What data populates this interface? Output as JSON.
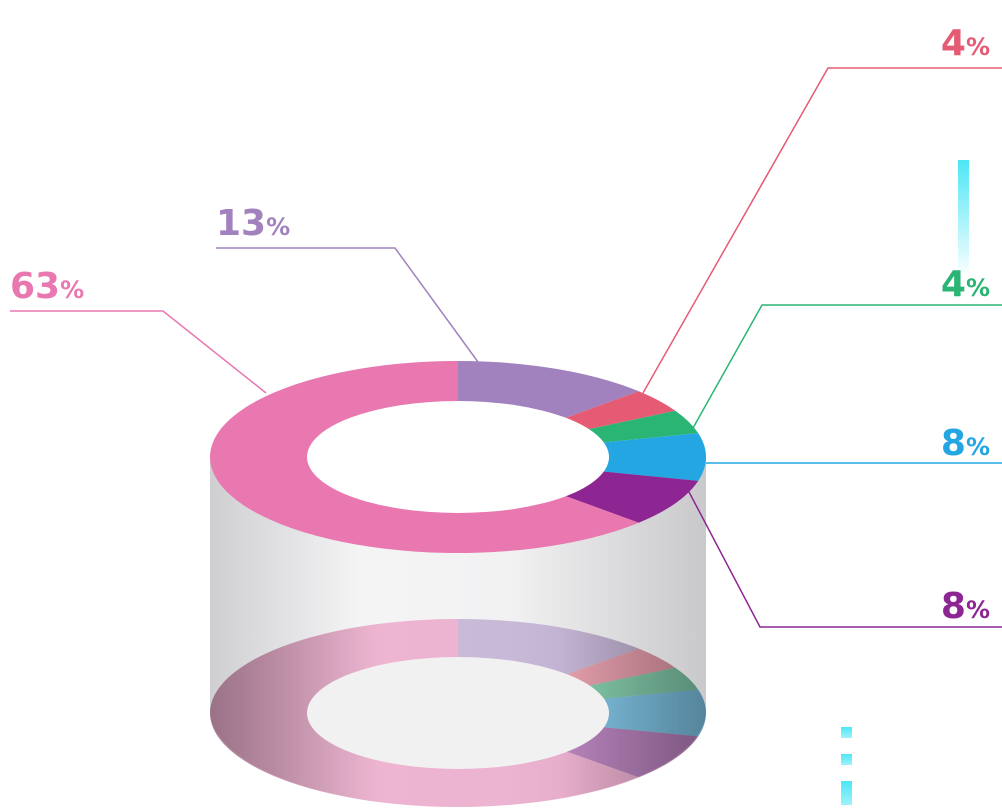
{
  "chart_data": {
    "type": "pie",
    "title": "",
    "values": [
      13,
      4,
      4,
      8,
      8,
      63
    ],
    "labels": [
      "13",
      "4",
      "4",
      "8",
      "8",
      "63"
    ],
    "unit": "%",
    "colors": [
      "#a182be",
      "#e55b74",
      "#2ab574",
      "#23a6e2",
      "#8d2693",
      "#e977b0"
    ],
    "legend": "none",
    "style": "3d-donut-cylinder"
  },
  "colors": {
    "cylinder_light": "#f7f7f8",
    "cylinder_dark": "#c6c6c9",
    "accent": "#4de6f6"
  }
}
